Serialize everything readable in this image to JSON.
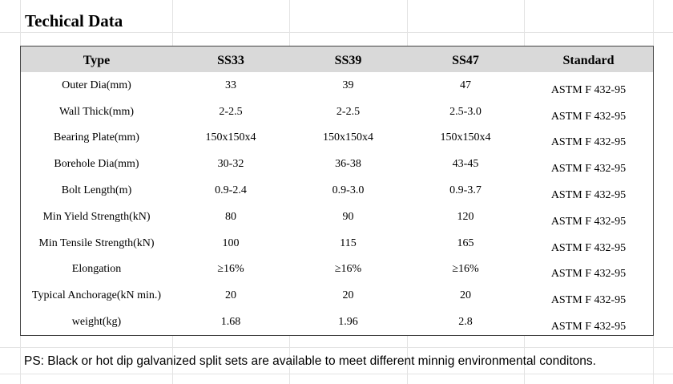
{
  "header": {
    "title": "Techical Data"
  },
  "table": {
    "header": [
      "Type",
      "SS33",
      "SS39",
      "SS47",
      "Standard"
    ],
    "rows": [
      [
        "Outer Dia(mm)",
        "33",
        "39",
        "47",
        "ASTM F 432-95"
      ],
      [
        "Wall Thick(mm)",
        "2-2.5",
        "2-2.5",
        "2.5-3.0",
        "ASTM F 432-95"
      ],
      [
        "Bearing Plate(mm)",
        "150x150x4",
        "150x150x4",
        "150x150x4",
        "ASTM F 432-95"
      ],
      [
        "Borehole Dia(mm)",
        "30-32",
        "36-38",
        "43-45",
        "ASTM F 432-95"
      ],
      [
        "Bolt Length(m)",
        "0.9-2.4",
        "0.9-3.0",
        "0.9-3.7",
        "ASTM F 432-95"
      ],
      [
        "Min Yield Strength(kN)",
        "80",
        "90",
        "120",
        "ASTM F 432-95"
      ],
      [
        "Min Tensile Strength(kN)",
        "100",
        "115",
        "165",
        "ASTM F 432-95"
      ],
      [
        "Elongation",
        "≥16%",
        "≥16%",
        "≥16%",
        "ASTM F 432-95"
      ],
      [
        "Typical Anchorage(kN min.)",
        "20",
        "20",
        "20",
        "ASTM F 432-95"
      ],
      [
        "weight(kg)",
        "1.68",
        "1.96",
        "2.8",
        "ASTM F 432-95"
      ]
    ]
  },
  "note": "PS: Black or hot dip galvanized split sets are available to meet different minnig environmental conditons."
}
